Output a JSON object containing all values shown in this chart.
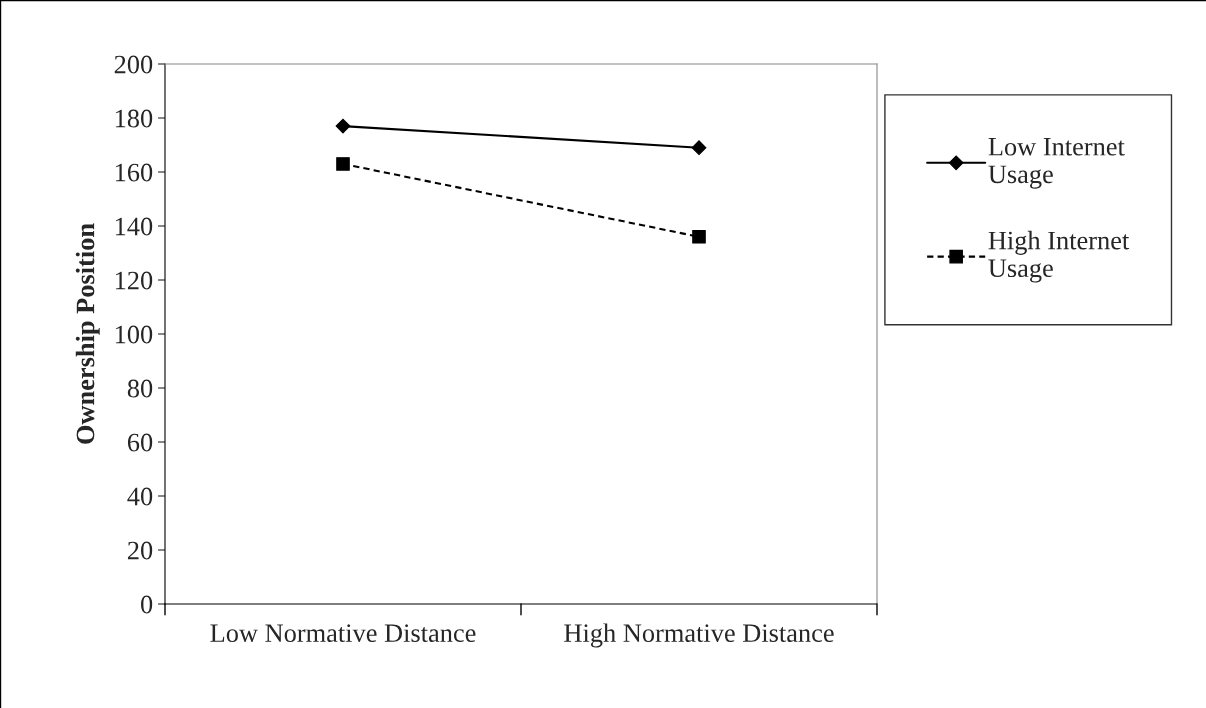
{
  "chart_data": {
    "type": "line",
    "ylabel": "Ownership Position",
    "categories": [
      "Low Normative Distance",
      "High Normative Distance"
    ],
    "series": [
      {
        "name": "Low Internet\nUsage",
        "color": "#000000",
        "values": [
          177,
          169
        ],
        "marker": "diamond",
        "line_style": "solid"
      },
      {
        "name": "High Internet\nUsage",
        "color": "#000000",
        "values": [
          163,
          136
        ],
        "marker": "square",
        "line_style": "dashed"
      }
    ],
    "ylim": [
      0,
      200
    ],
    "yticks": [
      0,
      20,
      40,
      60,
      80,
      100,
      120,
      140,
      160,
      180,
      200
    ],
    "grid": false,
    "legend": "right"
  }
}
